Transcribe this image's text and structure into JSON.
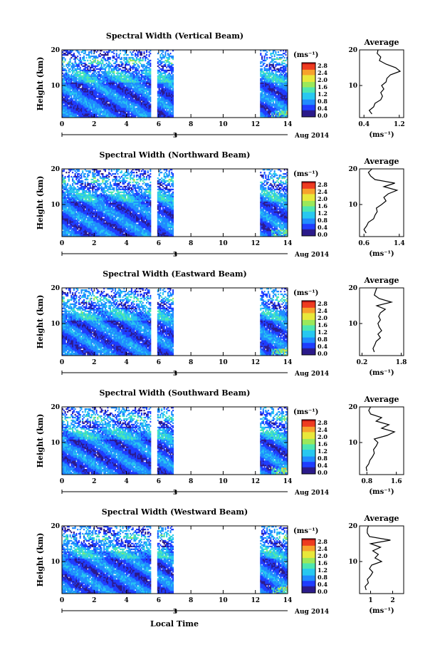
{
  "figure": {
    "xlabel": "Local Time",
    "date_label": "Aug 2014",
    "date_tick": "3",
    "x_ticks": [
      "0",
      "2",
      "4",
      "6",
      "8",
      "10",
      "12",
      "14"
    ],
    "y_ticks": [
      "20",
      "10"
    ],
    "ylabel": "Height (km)",
    "colorbar_unit": "(ms⁻¹)",
    "colorbar_ticks": [
      "2.8",
      "2.4",
      "2.0",
      "1.6",
      "1.2",
      "0.8",
      "0.4",
      "0.0"
    ],
    "colormap": [
      "#2b1a8a",
      "#1e3cff",
      "#1f8bff",
      "#27c8f0",
      "#4de6b0",
      "#9be85a",
      "#e8e83a",
      "#f7a22c",
      "#ee3b1f",
      "#b30f12"
    ],
    "average_title": "Average",
    "average_unit": "(ms⁻¹)"
  },
  "chart_data": [
    {
      "type": "heatmap",
      "title": "Spectral Width (Vertical Beam)",
      "xlim": [
        0,
        14
      ],
      "ylim": [
        1,
        20
      ],
      "clim": [
        0,
        3.0
      ],
      "data_gaps": [
        [
          5.5,
          5.9
        ],
        [
          6.9,
          12.3
        ]
      ],
      "avg": {
        "title": "Average",
        "x_ticks": [
          "0.4",
          "1.2"
        ],
        "xlim": [
          0.3,
          1.3
        ],
        "height": [
          2,
          3,
          4,
          5,
          6,
          7,
          8,
          9,
          10,
          11,
          12,
          13,
          14,
          15,
          16,
          17,
          18,
          19,
          20
        ],
        "value": [
          0.58,
          0.52,
          0.62,
          0.65,
          0.78,
          0.82,
          0.78,
          0.85,
          0.8,
          0.9,
          0.92,
          1.0,
          1.22,
          1.12,
          0.9,
          0.75,
          0.78,
          0.7,
          0.72
        ]
      }
    },
    {
      "type": "heatmap",
      "title": "Spectral Width (Northward Beam)",
      "xlim": [
        0,
        14
      ],
      "ylim": [
        1,
        20
      ],
      "clim": [
        0,
        3.0
      ],
      "data_gaps": [
        [
          5.5,
          5.9
        ],
        [
          6.9,
          12.3
        ]
      ],
      "avg": {
        "title": "Average",
        "x_ticks": [
          "0.6",
          "1.4"
        ],
        "xlim": [
          0.5,
          1.5
        ],
        "height": [
          2,
          3,
          4,
          5,
          6,
          7,
          8,
          9,
          10,
          11,
          12,
          13,
          14,
          15,
          16,
          17,
          18,
          19,
          20
        ],
        "value": [
          0.65,
          0.6,
          0.66,
          0.7,
          0.82,
          0.85,
          0.9,
          0.88,
          1.0,
          1.1,
          1.05,
          1.15,
          1.35,
          1.05,
          1.3,
          0.85,
          0.75,
          0.7,
          0.78
        ]
      }
    },
    {
      "type": "heatmap",
      "title": "Spectral Width (Eastward Beam)",
      "xlim": [
        0,
        14
      ],
      "ylim": [
        1,
        20
      ],
      "clim": [
        0,
        3.0
      ],
      "data_gaps": [
        [
          5.5,
          5.9
        ],
        [
          6.9,
          12.3
        ]
      ],
      "avg": {
        "title": "Average",
        "x_ticks": [
          "0.2",
          "1.8"
        ],
        "xlim": [
          0.1,
          1.9
        ],
        "height": [
          2,
          3,
          4,
          5,
          6,
          7,
          8,
          9,
          10,
          11,
          12,
          13,
          14,
          15,
          16,
          17,
          18,
          19,
          20
        ],
        "value": [
          0.7,
          0.65,
          0.72,
          0.78,
          0.95,
          0.85,
          1.0,
          0.9,
          0.85,
          0.95,
          0.88,
          0.95,
          1.15,
          0.8,
          1.4,
          0.9,
          0.7,
          0.75,
          0.8
        ]
      }
    },
    {
      "type": "heatmap",
      "title": "Spectral Width (Southward Beam)",
      "xlim": [
        0,
        14
      ],
      "ylim": [
        1,
        20
      ],
      "clim": [
        0,
        3.0
      ],
      "data_gaps": [
        [
          5.5,
          5.9
        ],
        [
          6.9,
          12.3
        ]
      ],
      "avg": {
        "title": "Average",
        "x_ticks": [
          "0.8",
          "1.6"
        ],
        "xlim": [
          0.6,
          1.8
        ],
        "height": [
          2,
          3,
          4,
          5,
          6,
          7,
          8,
          9,
          10,
          11,
          12,
          13,
          14,
          15,
          16,
          17,
          18,
          19,
          20
        ],
        "value": [
          0.8,
          0.78,
          0.85,
          0.88,
          0.95,
          1.0,
          0.98,
          1.05,
          1.1,
          1.0,
          1.35,
          1.55,
          1.2,
          1.4,
          1.05,
          1.2,
          0.9,
          0.85,
          0.9
        ]
      }
    },
    {
      "type": "heatmap",
      "title": "Spectral Width (Westward Beam)",
      "xlim": [
        0,
        14
      ],
      "ylim": [
        1,
        20
      ],
      "clim": [
        0,
        3.0
      ],
      "data_gaps": [
        [
          5.5,
          5.9
        ],
        [
          6.9,
          12.3
        ]
      ],
      "avg": {
        "title": "Average",
        "x_ticks": [
          "1",
          "2"
        ],
        "xlim": [
          0.5,
          2.5
        ],
        "height": [
          2,
          3,
          4,
          5,
          6,
          7,
          8,
          9,
          10,
          11,
          12,
          13,
          14,
          15,
          16,
          17,
          18,
          19,
          20
        ],
        "value": [
          0.8,
          0.75,
          0.9,
          0.85,
          1.0,
          1.1,
          0.95,
          1.05,
          1.5,
          1.2,
          1.35,
          1.1,
          1.45,
          1.0,
          1.9,
          0.95,
          0.85,
          0.85,
          0.9
        ]
      }
    }
  ]
}
